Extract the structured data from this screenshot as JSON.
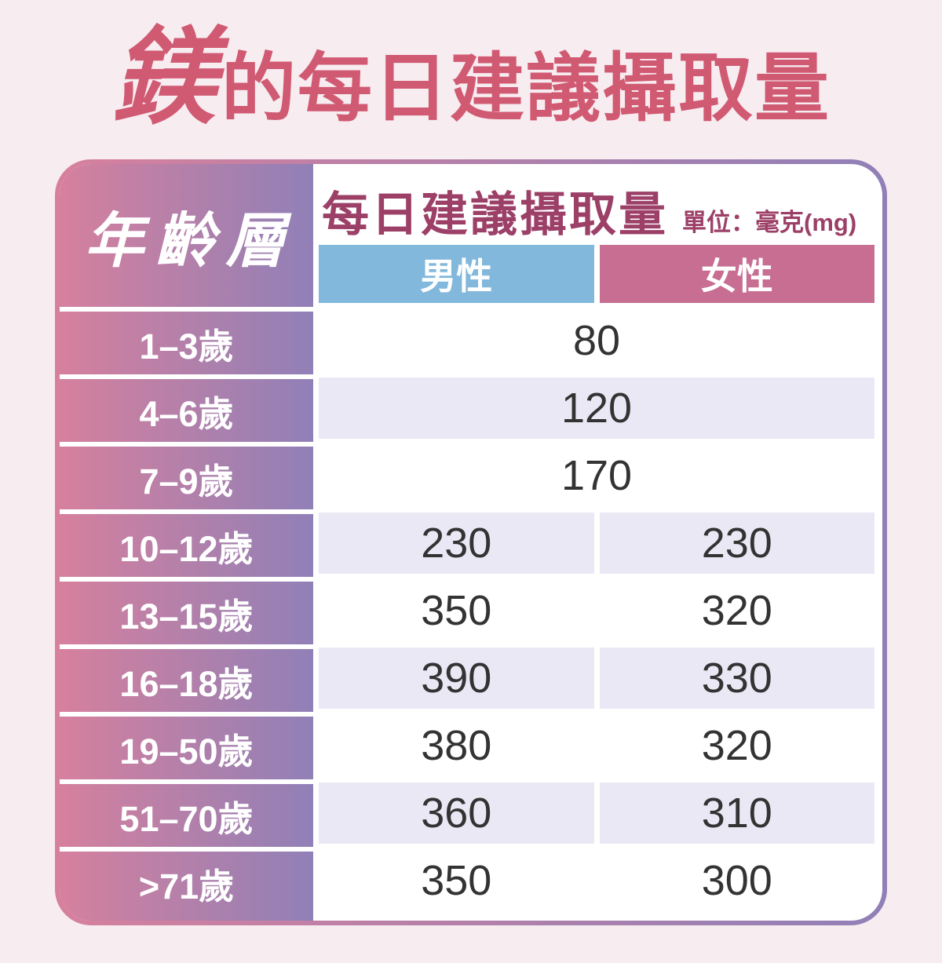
{
  "title": {
    "emphasis": "鎂",
    "rest": "的每日建議攝取量",
    "color": "#d15a73"
  },
  "table": {
    "age_header": "年齡層",
    "intake_header": "每日建議攝取量",
    "unit_label": "單位：毫克(mg)",
    "columns": {
      "male": "男性",
      "female": "女性"
    },
    "rows": [
      {
        "age": "1–3歲",
        "value": "80",
        "merged": true
      },
      {
        "age": "4–6歲",
        "value": "120",
        "merged": true
      },
      {
        "age": "7–9歲",
        "value": "170",
        "merged": true
      },
      {
        "age": "10–12歲",
        "male": "230",
        "female": "230"
      },
      {
        "age": "13–15歲",
        "male": "350",
        "female": "320"
      },
      {
        "age": "16–18歲",
        "male": "390",
        "female": "330"
      },
      {
        "age": "19–50歲",
        "male": "380",
        "female": "320"
      },
      {
        "age": "51–70歲",
        "male": "360",
        "female": "310"
      },
      {
        "age": ">71歲",
        "male": "350",
        "female": "300"
      }
    ],
    "colors": {
      "male_header": "#82b8dc",
      "female_header": "#c76e92",
      "header_text": "#9c4068",
      "stripe": "#eae8f5",
      "gradient_start": "#d6809d",
      "gradient_end": "#9080b7",
      "page_background": "#f7ecf0",
      "title_color": "#d15a73",
      "value_text": "#333333"
    }
  },
  "chart_data": {
    "type": "table",
    "title": "鎂的每日建議攝取量",
    "subtitle": "每日建議攝取量 單位：毫克(mg)",
    "unit": "mg",
    "columns": [
      "年齡層",
      "男性",
      "女性"
    ],
    "rows": [
      [
        "1–3歲",
        80,
        80
      ],
      [
        "4–6歲",
        120,
        120
      ],
      [
        "7–9歲",
        170,
        170
      ],
      [
        "10–12歲",
        230,
        230
      ],
      [
        "13–15歲",
        350,
        320
      ],
      [
        "16–18歲",
        390,
        330
      ],
      [
        "19–50歲",
        380,
        320
      ],
      [
        "51–70歲",
        360,
        310
      ],
      [
        ">71歲",
        350,
        300
      ]
    ],
    "notes": "Rows 1–3歲, 4–6歲, 7–9歲 show a single merged value for both sexes"
  }
}
